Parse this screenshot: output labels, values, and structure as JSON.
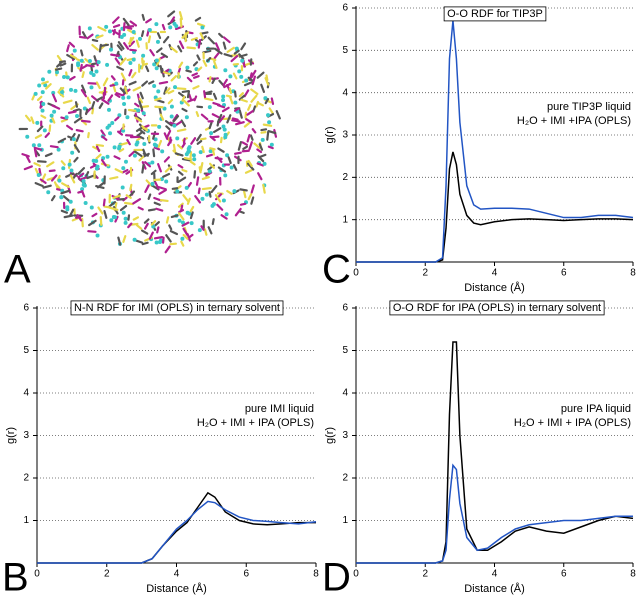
{
  "panel_a": {
    "label": "A"
  },
  "chart_data": [
    {
      "type": "line",
      "label": "C",
      "title": "O-O RDF for TIP3P",
      "xlabel": "Distance (Å)",
      "ylabel": "g(r)",
      "x": [
        0,
        2.3,
        2.5,
        2.6,
        2.7,
        2.8,
        2.9,
        3.0,
        3.2,
        3.4,
        3.6,
        4.0,
        4.5,
        5.0,
        5.5,
        6.0,
        6.5,
        7.0,
        7.5,
        8.0
      ],
      "series": [
        {
          "name": "pure TIP3P liquid",
          "color": "#000000",
          "values": [
            0,
            0,
            0.05,
            0.8,
            2.2,
            2.6,
            2.3,
            1.6,
            1.1,
            0.92,
            0.88,
            0.95,
            1.0,
            1.02,
            1.0,
            0.98,
            1.0,
            1.02,
            1.02,
            1.0
          ]
        },
        {
          "name": "H₂O + IMI +IPA (OPLS)",
          "color": "#2255c4",
          "values": [
            0,
            0,
            0.1,
            1.8,
            4.8,
            5.7,
            4.8,
            3.3,
            1.8,
            1.35,
            1.25,
            1.27,
            1.27,
            1.25,
            1.15,
            1.05,
            1.05,
            1.1,
            1.1,
            1.05
          ]
        }
      ],
      "xlim": [
        0,
        8
      ],
      "ylim": [
        0,
        6
      ],
      "xticks": [
        0,
        2,
        4,
        6,
        8
      ],
      "yticks": [
        1,
        2,
        3,
        4,
        5,
        6
      ],
      "grid": true,
      "legend": "right"
    },
    {
      "type": "line",
      "label": "B",
      "title": "N-N RDF for IMI (OPLS) in ternary solvent",
      "xlabel": "Distance (Å)",
      "ylabel": "g(r)",
      "x": [
        0,
        2.5,
        3.0,
        3.3,
        3.6,
        4.0,
        4.3,
        4.6,
        4.9,
        5.1,
        5.4,
        5.8,
        6.2,
        6.6,
        7.0,
        7.5,
        8.0
      ],
      "series": [
        {
          "name": "pure IMI liquid",
          "color": "#000000",
          "values": [
            0,
            0,
            0,
            0.1,
            0.4,
            0.75,
            0.95,
            1.3,
            1.65,
            1.55,
            1.2,
            1.0,
            0.92,
            0.9,
            0.92,
            0.95,
            0.95
          ]
        },
        {
          "name": "H₂O + IMI + IPA (OPLS)",
          "color": "#2255c4",
          "values": [
            0,
            0,
            0,
            0.1,
            0.4,
            0.8,
            1.0,
            1.25,
            1.45,
            1.42,
            1.25,
            1.08,
            1.0,
            0.98,
            0.95,
            0.92,
            0.97
          ]
        }
      ],
      "xlim": [
        0,
        8
      ],
      "ylim": [
        0,
        6
      ],
      "xticks": [
        0,
        2,
        4,
        6,
        8
      ],
      "yticks": [
        1,
        2,
        3,
        4,
        5,
        6
      ],
      "grid": true,
      "legend": "right"
    },
    {
      "type": "line",
      "label": "D",
      "title": "O-O RDF for IPA (OPLS) in ternary solvent",
      "xlabel": "Distance (Å)",
      "ylabel": "g(r)",
      "x": [
        0,
        2.3,
        2.5,
        2.6,
        2.7,
        2.8,
        2.9,
        3.0,
        3.2,
        3.5,
        3.8,
        4.2,
        4.6,
        5.0,
        5.5,
        6.0,
        6.5,
        7.0,
        7.5,
        8.0
      ],
      "series": [
        {
          "name": "pure IPA liquid",
          "color": "#000000",
          "values": [
            0,
            0,
            0.05,
            0.5,
            3.5,
            5.2,
            5.2,
            3.0,
            0.8,
            0.3,
            0.3,
            0.5,
            0.75,
            0.85,
            0.75,
            0.7,
            0.85,
            1.0,
            1.1,
            1.05
          ]
        },
        {
          "name": "H₂O + IMI + IPA (OPLS)",
          "color": "#2255c4",
          "values": [
            0,
            0,
            0.05,
            0.3,
            1.5,
            2.3,
            2.2,
            1.4,
            0.6,
            0.3,
            0.35,
            0.6,
            0.8,
            0.9,
            0.95,
            1.0,
            1.0,
            1.05,
            1.1,
            1.1
          ]
        }
      ],
      "xlim": [
        0,
        8
      ],
      "ylim": [
        0,
        6
      ],
      "xticks": [
        0,
        2,
        4,
        6,
        8
      ],
      "yticks": [
        1,
        2,
        3,
        4,
        5,
        6
      ],
      "grid": true,
      "legend": "right"
    }
  ]
}
